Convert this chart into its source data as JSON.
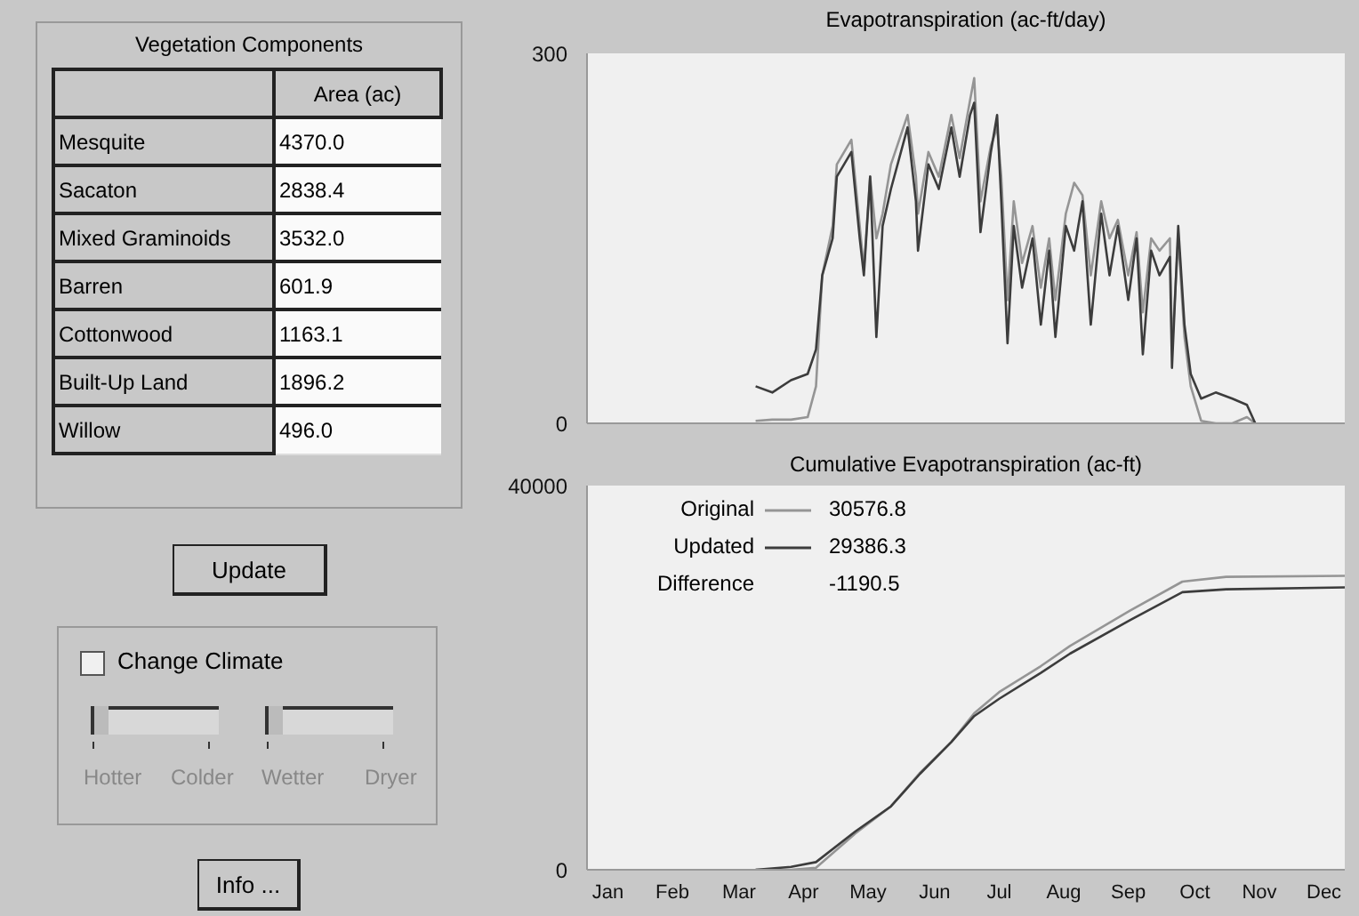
{
  "chart_data": [
    {
      "type": "other",
      "title": "Vegetation Components",
      "xlabel": "Area (ac)",
      "categories": [
        "Mesquite",
        "Sacaton",
        "Mixed Graminoids",
        "Barren",
        "Cottonwood",
        "Built-Up Land",
        "Willow"
      ],
      "value_labels": [
        "4370.0",
        "2838.4",
        "3532.0",
        "601.9",
        "1163.1",
        "1896.2",
        "496.0"
      ],
      "annotations": [
        "Update",
        "Change Climate",
        "Hotter",
        "Colder",
        "Wetter",
        "Dryer",
        "Info ..."
      ]
    },
    {
      "type": "line",
      "title": "Evapotranspiration (ac-ft/day)",
      "xlim": [
        "--01-01",
        "--12-31"
      ],
      "ylim": [
        0,
        300
      ],
      "yticks": [
        0,
        300
      ],
      "tick_labels": "y",
      "grid": false,
      "legend": false,
      "x": [
        "--03-23",
        "--03-31",
        "--04-09",
        "--04-17",
        "--04-21",
        "--04-24",
        "--04-29",
        "--05-01",
        "--05-08",
        "--05-12",
        "--05-14",
        "--05-17",
        "--05-20",
        "--05-23",
        "--05-27",
        "--06-04",
        "--06-08",
        "--06-09",
        "--06-14",
        "--06-19",
        "--06-25",
        "--06-29",
        "--07-04",
        "--07-06",
        "--07-09",
        "--07-14",
        "--07-17",
        "--07-19",
        "--07-22",
        "--07-25",
        "--07-29",
        "--08-03",
        "--08-07",
        "--08-11",
        "--08-14",
        "--08-19",
        "--08-23",
        "--08-27",
        "--08-31",
        "--09-05",
        "--09-09",
        "--09-13",
        "--09-18",
        "--09-22",
        "--09-25",
        "--09-29",
        "--10-03",
        "--10-08",
        "--10-09",
        "--10-12",
        "--10-15",
        "--10-18",
        "--10-23",
        "--10-30",
        "--11-07",
        "--11-14",
        "--11-18"
      ],
      "series": [
        {
          "color": "#959595",
          "values": [
            2,
            3,
            3,
            5,
            30,
            120,
            160,
            210,
            230,
            160,
            125,
            200,
            150,
            170,
            210,
            250,
            200,
            170,
            220,
            200,
            250,
            215,
            262,
            280,
            180,
            225,
            240,
            200,
            100,
            180,
            130,
            160,
            110,
            150,
            100,
            170,
            195,
            185,
            120,
            180,
            150,
            165,
            120,
            155,
            90,
            150,
            140,
            150,
            60,
            150,
            70,
            30,
            2,
            0,
            0,
            5,
            0
          ]
        },
        {
          "color": "#3c3c3c",
          "values": [
            30,
            25,
            35,
            40,
            60,
            120,
            150,
            200,
            220,
            150,
            120,
            200,
            70,
            160,
            190,
            240,
            180,
            140,
            210,
            190,
            240,
            200,
            250,
            260,
            155,
            220,
            250,
            180,
            65,
            160,
            110,
            150,
            80,
            140,
            70,
            160,
            140,
            180,
            80,
            170,
            120,
            160,
            100,
            150,
            56,
            140,
            120,
            135,
            45,
            160,
            80,
            40,
            20,
            25,
            20,
            15,
            0
          ]
        }
      ]
    },
    {
      "type": "line",
      "title": "Cumulative Evapotranspiration (ac-ft)",
      "xlim": [
        "--01-01",
        "--12-31"
      ],
      "ylim": [
        0,
        40000
      ],
      "yticks": [
        0,
        40000
      ],
      "grid": false,
      "legend": "top left",
      "xticks": [
        {
          "value": "--01-11",
          "label": "Jan"
        },
        {
          "value": "--02-11",
          "label": "Feb"
        },
        {
          "value": "--03-15",
          "label": "Mar"
        },
        {
          "value": "--04-15",
          "label": "Apr"
        },
        {
          "value": "--05-16",
          "label": "May"
        },
        {
          "value": "--06-17",
          "label": "Jun"
        },
        {
          "value": "--07-18",
          "label": "Jul"
        },
        {
          "value": "--08-18",
          "label": "Aug"
        },
        {
          "value": "--09-18",
          "label": "Sep"
        },
        {
          "value": "--10-20",
          "label": "Oct"
        },
        {
          "value": "--11-20",
          "label": "Nov"
        },
        {
          "value": "--12-21",
          "label": "Dec"
        }
      ],
      "x": [
        "--03-23",
        "--04-09",
        "--04-21",
        "--05-10",
        "--05-27",
        "--06-10",
        "--06-25",
        "--07-06",
        "--07-18",
        "--08-07",
        "--08-21",
        "--09-19",
        "--10-14",
        "--11-04",
        "--12-31"
      ],
      "series": [
        {
          "name": "Original",
          "color": "#959595",
          "values": [
            0,
            0,
            200,
            3800,
            6600,
            10100,
            13300,
            16300,
            18500,
            21200,
            23300,
            27000,
            30000,
            30500,
            30600
          ]
        },
        {
          "name": "Updated",
          "color": "#3c3c3c",
          "values": [
            0,
            300,
            800,
            4000,
            6600,
            10000,
            13300,
            16000,
            17800,
            20500,
            22500,
            26000,
            28900,
            29200,
            29400
          ]
        }
      ],
      "annotations": [
        "30576.8",
        "29386.3",
        "Difference",
        "-1190.5"
      ]
    }
  ]
}
